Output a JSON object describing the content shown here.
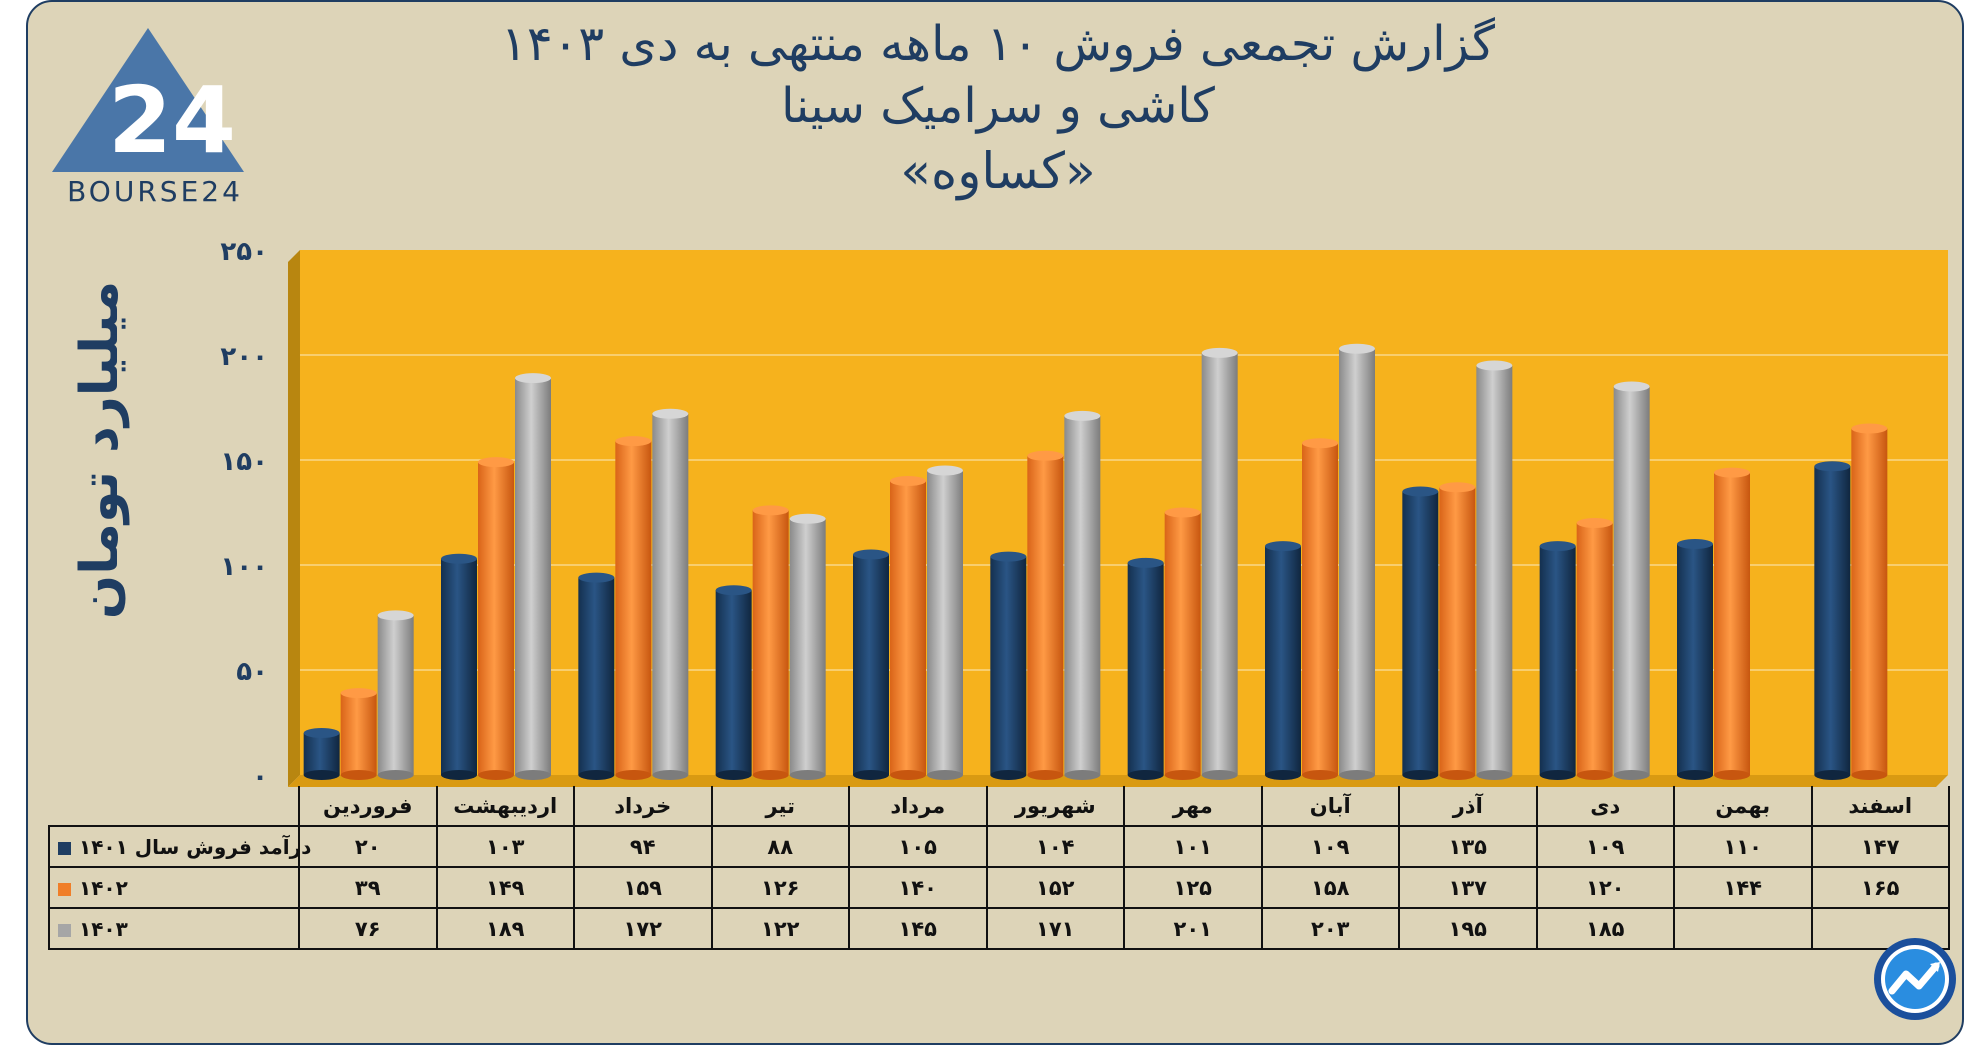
{
  "title": {
    "line1": "گزارش تجمعی فروش ۱۰ ماهه منتهی به دی ۱۴۰۳",
    "line2": "کاشی و سرامیک سینا",
    "line3": "«کساوه»"
  },
  "logo": {
    "brand_text": "BOURSE24",
    "mark_text": "24",
    "icon": "trend-arrow-icon"
  },
  "colors": {
    "background": "#ddd4b8",
    "plot_area": "#f6b21d",
    "series_1401": "#1f3d62",
    "series_1402": "#f07e28",
    "series_1403": "#a6a6a6",
    "text": "#1f3d62"
  },
  "chart_data": {
    "type": "bar",
    "title": "گزارش تجمعی فروش ۱۰ ماهه منتهی به دی ۱۴۰۳",
    "xlabel": "",
    "ylabel": "میلیارد تومان",
    "ylim": [
      0,
      250
    ],
    "yticks": [
      "۰",
      "۵۰",
      "۱۰۰",
      "۱۵۰",
      "۲۰۰",
      "۲۵۰"
    ],
    "ytick_values": [
      0,
      50,
      100,
      150,
      200,
      250
    ],
    "categories": [
      "فروردین",
      "اردیبهشت",
      "خرداد",
      "تیر",
      "مرداد",
      "شهریور",
      "مهر",
      "آبان",
      "آذر",
      "دی",
      "بهمن",
      "اسفند"
    ],
    "series": [
      {
        "name": "درآمد فروش سال ۱۴۰۱",
        "values": [
          20,
          103,
          94,
          88,
          105,
          104,
          101,
          109,
          135,
          109,
          110,
          147
        ],
        "labels": [
          "۲۰",
          "۱۰۳",
          "۹۴",
          "۸۸",
          "۱۰۵",
          "۱۰۴",
          "۱۰۱",
          "۱۰۹",
          "۱۳۵",
          "۱۰۹",
          "۱۱۰",
          "۱۴۷"
        ]
      },
      {
        "name": "۱۴۰۲",
        "values": [
          39,
          149,
          159,
          126,
          140,
          152,
          125,
          158,
          137,
          120,
          144,
          165
        ],
        "labels": [
          "۳۹",
          "۱۴۹",
          "۱۵۹",
          "۱۲۶",
          "۱۴۰",
          "۱۵۲",
          "۱۲۵",
          "۱۵۸",
          "۱۳۷",
          "۱۲۰",
          "۱۴۴",
          "۱۶۵"
        ]
      },
      {
        "name": "۱۴۰۳",
        "values": [
          76,
          189,
          172,
          122,
          145,
          171,
          201,
          203,
          195,
          185,
          null,
          null
        ],
        "labels": [
          "۷۶",
          "۱۸۹",
          "۱۷۲",
          "۱۲۲",
          "۱۴۵",
          "۱۷۱",
          "۲۰۱",
          "۲۰۳",
          "۱۹۵",
          "۱۸۵",
          "",
          ""
        ]
      }
    ]
  }
}
